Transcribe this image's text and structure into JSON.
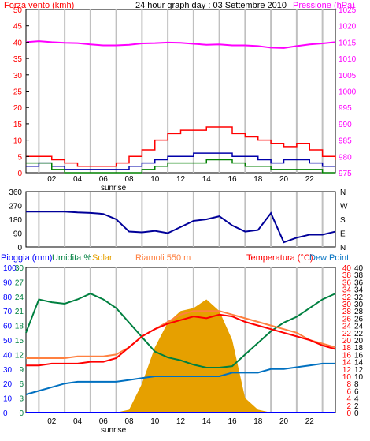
{
  "header": {
    "left_label": "Forza vento (kmh)",
    "title": "24 hour graph day : 03 Settembre 2010",
    "right_label": "Pressione (hPa)"
  },
  "bottom_labels": {
    "rain": "Pioggia (mm)",
    "humidity": "Umidita %",
    "solar": "Solar",
    "station": "Riamoli 550 m",
    "temperature": "Temperatura (°C)",
    "dewpoint": "Dew Point"
  },
  "colors": {
    "wind_red": "#ff0000",
    "wind_blue": "#0000aa",
    "wind_green": "#008000",
    "pressure": "#ff00ff",
    "direction": "#000099",
    "humidity": "#008040",
    "solar": "#e6a000",
    "temperature": "#ff0000",
    "dewpoint": "#0070c0",
    "temp_orange": "#ff8040",
    "rain": "#0000ff",
    "grid": "#c0c0c0",
    "frame": "#000000"
  },
  "x_ticks": [
    "02",
    "04",
    "06",
    "08",
    "10",
    "12",
    "14",
    "16",
    "18",
    "20",
    "22"
  ],
  "sunrise_label": "sunrise",
  "chart_data": [
    {
      "type": "line",
      "title": "24 hour graph day : 03 Settembre 2010",
      "ylabel": "Forza vento (kmh)",
      "ylabel_right": "Pressione (hPa)",
      "ylim": [
        0,
        50
      ],
      "ylim_right": [
        975,
        1025
      ],
      "y_ticks": [
        "0",
        "5",
        "10",
        "15",
        "20",
        "25",
        "30",
        "35",
        "40",
        "45",
        "50"
      ],
      "y_ticks_right": [
        "975",
        "980",
        "985",
        "990",
        "995",
        "1000",
        "1005",
        "1010",
        "1015",
        "1020",
        "1025"
      ],
      "x_hours": [
        0,
        1,
        2,
        3,
        4,
        5,
        6,
        7,
        8,
        9,
        10,
        11,
        12,
        13,
        14,
        15,
        16,
        17,
        18,
        19,
        20,
        21,
        22,
        23,
        24
      ],
      "series": [
        {
          "name": "Pressione (hPa)",
          "axis": "right",
          "values": [
            1015,
            1015.3,
            1015,
            1014.8,
            1014.7,
            1014.3,
            1014,
            1014,
            1014.2,
            1014.6,
            1014.7,
            1014.9,
            1014.8,
            1014.5,
            1014.2,
            1014.3,
            1014,
            1014,
            1013.8,
            1013.3,
            1013.2,
            1013.8,
            1014.3,
            1014.6,
            1015
          ]
        },
        {
          "values": [
            5,
            5,
            4,
            3,
            2,
            2,
            2,
            3,
            5,
            7,
            10,
            12,
            13,
            13,
            14,
            14,
            12,
            11,
            10,
            9,
            8,
            9,
            7,
            5,
            4
          ]
        },
        {
          "values": [
            2,
            3,
            2,
            1,
            1,
            1,
            1,
            1,
            2,
            3,
            4,
            5,
            5,
            6,
            6,
            6,
            5,
            5,
            4,
            3,
            4,
            4,
            3,
            2,
            2
          ]
        },
        {
          "values": [
            3,
            3,
            1,
            0,
            0,
            0,
            0,
            0,
            0,
            1,
            2,
            3,
            3,
            3,
            4,
            4,
            3,
            2,
            2,
            1,
            1,
            1,
            1,
            0,
            0
          ]
        }
      ]
    },
    {
      "type": "line",
      "ylim": [
        0,
        360
      ],
      "y_ticks": [
        "0",
        "90",
        "180",
        "270",
        "360"
      ],
      "y_ticks_right": [
        "N",
        "E",
        "S",
        "W",
        "N"
      ],
      "x_hours": [
        0,
        1,
        2,
        3,
        4,
        5,
        6,
        7,
        8,
        9,
        10,
        11,
        12,
        13,
        14,
        15,
        16,
        17,
        18,
        19,
        20,
        21,
        22,
        23,
        24
      ],
      "series": [
        {
          "values": [
            230,
            230,
            230,
            230,
            225,
            222,
            215,
            180,
            100,
            95,
            105,
            90,
            130,
            170,
            180,
            200,
            140,
            100,
            110,
            220,
            30,
            60,
            80,
            80,
            100
          ]
        }
      ]
    },
    {
      "type": "line",
      "ylabel": "Pioggia (mm) / Umidita % / Solar",
      "ylabel_right": "Temperatura (°C) / Dew Point",
      "ylim": [
        0,
        100
      ],
      "ylim_right": [
        0,
        40
      ],
      "y_ticks": [
        "0",
        "10",
        "20",
        "30",
        "40",
        "50",
        "60",
        "70",
        "80",
        "90",
        "100"
      ],
      "y_ticks_mid": [
        "0",
        "3",
        "6",
        "9",
        "12",
        "15",
        "18",
        "21",
        "24",
        "27",
        "30"
      ],
      "y_ticks_pressure_mid": [
        "0",
        "2",
        "4",
        "6",
        "8",
        "10",
        "12",
        "14",
        "16",
        "18",
        "20",
        "22",
        "24",
        "26",
        "28",
        "30",
        "32",
        "34",
        "36",
        "38",
        "40"
      ],
      "x_hours": [
        0,
        1,
        2,
        3,
        4,
        5,
        6,
        7,
        8,
        9,
        10,
        11,
        12,
        13,
        14,
        15,
        16,
        17,
        18,
        19,
        20,
        21,
        22,
        23,
        24
      ],
      "series": [
        {
          "name": "Umidita %",
          "values": [
            55,
            78,
            76,
            75,
            78,
            82,
            78,
            72,
            62,
            52,
            42,
            38,
            36,
            33,
            31,
            31,
            32,
            40,
            48,
            56,
            62,
            66,
            72,
            78,
            82
          ]
        },
        {
          "name": "Temperatura (°C)",
          "values": [
            13,
            13,
            13.5,
            13.5,
            13.5,
            14,
            14,
            15,
            18,
            21,
            23,
            24.5,
            25.5,
            26.5,
            26,
            27,
            26.5,
            25,
            24,
            23,
            22,
            21,
            20,
            18.5,
            17.5
          ]
        },
        {
          "name": "Dew Point",
          "values": [
            5,
            6,
            7,
            8,
            8.5,
            8.5,
            8.5,
            8.5,
            9,
            9.5,
            10,
            10,
            10,
            10,
            10,
            10,
            11,
            11,
            11,
            12,
            12,
            12.5,
            13,
            13.5,
            13.5
          ]
        },
        {
          "values": [
            15,
            15,
            15,
            15,
            15.5,
            15.5,
            15.5,
            16,
            18,
            21,
            23,
            25,
            27,
            28,
            28,
            28,
            27,
            26,
            25,
            24,
            23,
            22,
            20,
            19,
            18
          ]
        },
        {
          "name": "Solar",
          "type": "area",
          "values": [
            0,
            0,
            0,
            0,
            0,
            0,
            0,
            0,
            2,
            20,
            45,
            62,
            70,
            72,
            78,
            70,
            50,
            10,
            2,
            0,
            0,
            0,
            0,
            0,
            0
          ]
        },
        {
          "name": "Pioggia (mm)",
          "values": [
            0,
            0,
            0,
            0,
            0,
            0,
            0,
            0,
            0,
            0,
            0,
            0,
            0,
            0,
            0,
            0,
            0,
            0,
            0,
            0,
            0,
            0,
            0,
            0,
            0
          ]
        }
      ]
    }
  ]
}
